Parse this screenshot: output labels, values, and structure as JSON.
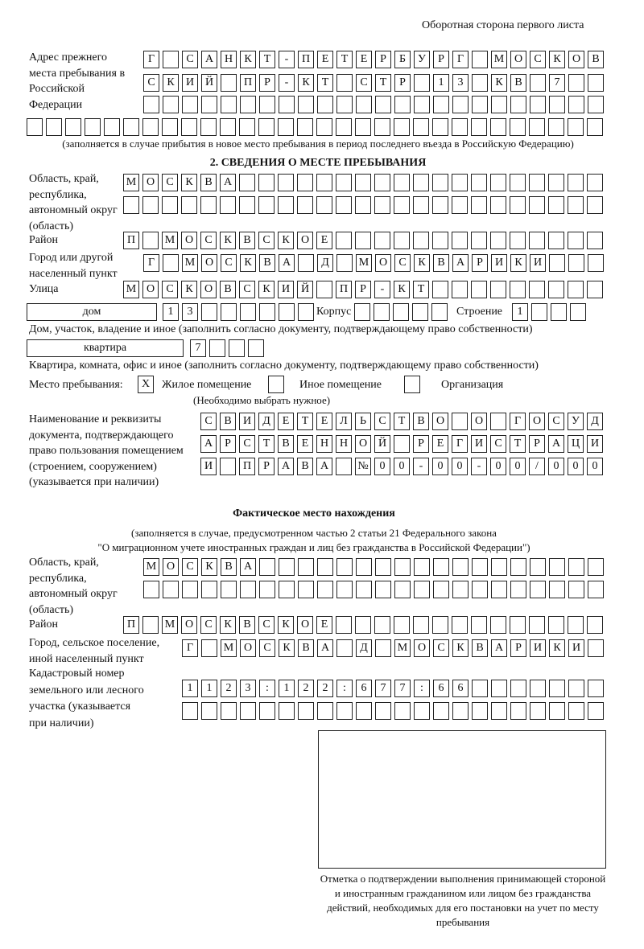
{
  "header": "Оборотная сторона первого листа",
  "prev_address": {
    "label": "Адрес прежнего места пребывания в Российской Федерации",
    "rows": [
      [
        "Г",
        "",
        "С",
        "А",
        "Н",
        "К",
        "Т",
        "-",
        "П",
        "Е",
        "Т",
        "Е",
        "Р",
        "Б",
        "У",
        "Р",
        "Г",
        "",
        "М",
        "О",
        "С",
        "К",
        "О",
        "В"
      ],
      [
        "С",
        "К",
        "И",
        "Й",
        "",
        "П",
        "Р",
        "-",
        "К",
        "Т",
        "",
        "С",
        "Т",
        "Р",
        "",
        "1",
        "3",
        "",
        "К",
        "В",
        "",
        "7",
        "",
        ""
      ],
      [
        "",
        "",
        "",
        "",
        "",
        "",
        "",
        "",
        "",
        "",
        "",
        "",
        "",
        "",
        "",
        "",
        "",
        "",
        "",
        "",
        "",
        "",
        "",
        ""
      ],
      [
        "",
        "",
        "",
        "",
        "",
        "",
        "",
        "",
        "",
        "",
        "",
        "",
        "",
        "",
        "",
        "",
        "",
        "",
        "",
        "",
        "",
        "",
        "",
        "",
        "",
        "",
        "",
        "",
        "",
        ""
      ]
    ],
    "note": "(заполняется в случае прибытия в новое место пребывания в период последнего въезда в Российскую Федерацию)"
  },
  "section2": {
    "title": "2. СВЕДЕНИЯ О МЕСТЕ ПРЕБЫВАНИЯ",
    "region_label": "Область, край, республика, автономный округ (область)",
    "region_rows": [
      [
        "М",
        "О",
        "С",
        "К",
        "В",
        "А",
        "",
        "",
        "",
        "",
        "",
        "",
        "",
        "",
        "",
        "",
        "",
        "",
        "",
        "",
        "",
        "",
        "",
        "",
        ""
      ],
      [
        "",
        "",
        "",
        "",
        "",
        "",
        "",
        "",
        "",
        "",
        "",
        "",
        "",
        "",
        "",
        "",
        "",
        "",
        "",
        "",
        "",
        "",
        "",
        "",
        ""
      ]
    ],
    "district_label": "Район",
    "district": [
      "П",
      "",
      "М",
      "О",
      "С",
      "К",
      "В",
      "С",
      "К",
      "О",
      "Е",
      "",
      "",
      "",
      "",
      "",
      "",
      "",
      "",
      "",
      "",
      "",
      "",
      "",
      ""
    ],
    "city_label": "Город или другой населенный пункт",
    "city": [
      "Г",
      "",
      "М",
      "О",
      "С",
      "К",
      "В",
      "А",
      "",
      "Д",
      "",
      "М",
      "О",
      "С",
      "К",
      "В",
      "А",
      "Р",
      "И",
      "К",
      "И",
      "",
      "",
      ""
    ],
    "street_label": "Улица",
    "street": [
      "М",
      "О",
      "С",
      "К",
      "О",
      "В",
      "С",
      "К",
      "И",
      "Й",
      "",
      "П",
      "Р",
      "-",
      "К",
      "Т",
      "",
      "",
      "",
      "",
      "",
      "",
      "",
      "",
      ""
    ],
    "house_type": "дом",
    "house": [
      "1",
      "3",
      "",
      "",
      "",
      "",
      "",
      ""
    ],
    "korpus_label": "Корпус",
    "korpus": [
      "",
      "",
      "",
      "",
      ""
    ],
    "building_label": "Строение",
    "building": [
      "1",
      "",
      "",
      ""
    ],
    "house_note": "Дом, участок, владение и иное (заполнить согласно документу, подтверждающему право собственности)",
    "flat_type": "квартира",
    "flat": [
      "7",
      "",
      "",
      ""
    ],
    "flat_note": "Квартира, комната, офис и иное (заполнить согласно документу, подтверждающему право собственности)",
    "stay_label": "Место пребывания:",
    "stay_options": [
      {
        "label": "Жилое помещение",
        "mark": "X"
      },
      {
        "label": "Иное помещение",
        "mark": ""
      },
      {
        "label": "Организация",
        "mark": ""
      }
    ],
    "stay_note": "(Необходимо выбрать нужное)",
    "doc_label": "Наименование и реквизиты документа, подтверждающего право пользования помещением (строением, сооружением) (указывается при наличии)",
    "doc_rows": [
      [
        "С",
        "В",
        "И",
        "Д",
        "Е",
        "Т",
        "Е",
        "Л",
        "Ь",
        "С",
        "Т",
        "В",
        "О",
        "",
        "О",
        "",
        "Г",
        "О",
        "С",
        "У",
        "Д"
      ],
      [
        "А",
        "Р",
        "С",
        "Т",
        "В",
        "Е",
        "Н",
        "Н",
        "О",
        "Й",
        "",
        "Р",
        "Е",
        "Г",
        "И",
        "С",
        "Т",
        "Р",
        "А",
        "Ц",
        "И"
      ],
      [
        "И",
        "",
        "П",
        "Р",
        "А",
        "В",
        "А",
        "",
        "№",
        "0",
        "0",
        "-",
        "0",
        "0",
        "-",
        "0",
        "0",
        "/",
        "0",
        "0",
        "0"
      ]
    ]
  },
  "actual": {
    "title": "Фактическое место нахождения",
    "note1": "(заполняется в случае, предусмотренном частью 2 статьи 21 Федерального закона",
    "note2": "\"О миграционном учете иностранных граждан и лиц без гражданства в Российской Федерации\")",
    "region_label": "Область, край, республика, автономный округ (область)",
    "region_rows": [
      [
        "М",
        "О",
        "С",
        "К",
        "В",
        "А",
        "",
        "",
        "",
        "",
        "",
        "",
        "",
        "",
        "",
        "",
        "",
        "",
        "",
        "",
        "",
        "",
        "",
        ""
      ],
      [
        "",
        "",
        "",
        "",
        "",
        "",
        "",
        "",
        "",
        "",
        "",
        "",
        "",
        "",
        "",
        "",
        "",
        "",
        "",
        "",
        "",
        "",
        "",
        ""
      ]
    ],
    "district_label": "Район",
    "district": [
      "П",
      "",
      "М",
      "О",
      "С",
      "К",
      "В",
      "С",
      "К",
      "О",
      "Е",
      "",
      "",
      "",
      "",
      "",
      "",
      "",
      "",
      "",
      "",
      "",
      "",
      "",
      ""
    ],
    "city_label": "Город, сельское поселение, иной населенный пункт",
    "city": [
      "Г",
      "",
      "М",
      "О",
      "С",
      "К",
      "В",
      "А",
      "",
      "Д",
      "",
      "М",
      "О",
      "С",
      "К",
      "В",
      "А",
      "Р",
      "И",
      "К",
      "И",
      ""
    ],
    "cadastre_label": "Кадастровый номер земельного или лесного участка (указывается при наличии)",
    "cadastre_rows": [
      [
        "1",
        "1",
        "2",
        "3",
        ":",
        "1",
        "2",
        "2",
        ":",
        "6",
        "7",
        "7",
        ":",
        "6",
        "6",
        "",
        "",
        "",
        "",
        "",
        "",
        ""
      ],
      [
        "",
        "",
        "",
        "",
        "",
        "",
        "",
        "",
        "",
        "",
        "",
        "",
        "",
        "",
        "",
        "",
        "",
        "",
        "",
        "",
        "",
        ""
      ]
    ]
  },
  "stamp_caption": "Отметка о подтверждении выполнения принимающей стороной и иностранным гражданином или лицом без гражданства действий, необходимых для его постановки на учет по месту пребывания"
}
